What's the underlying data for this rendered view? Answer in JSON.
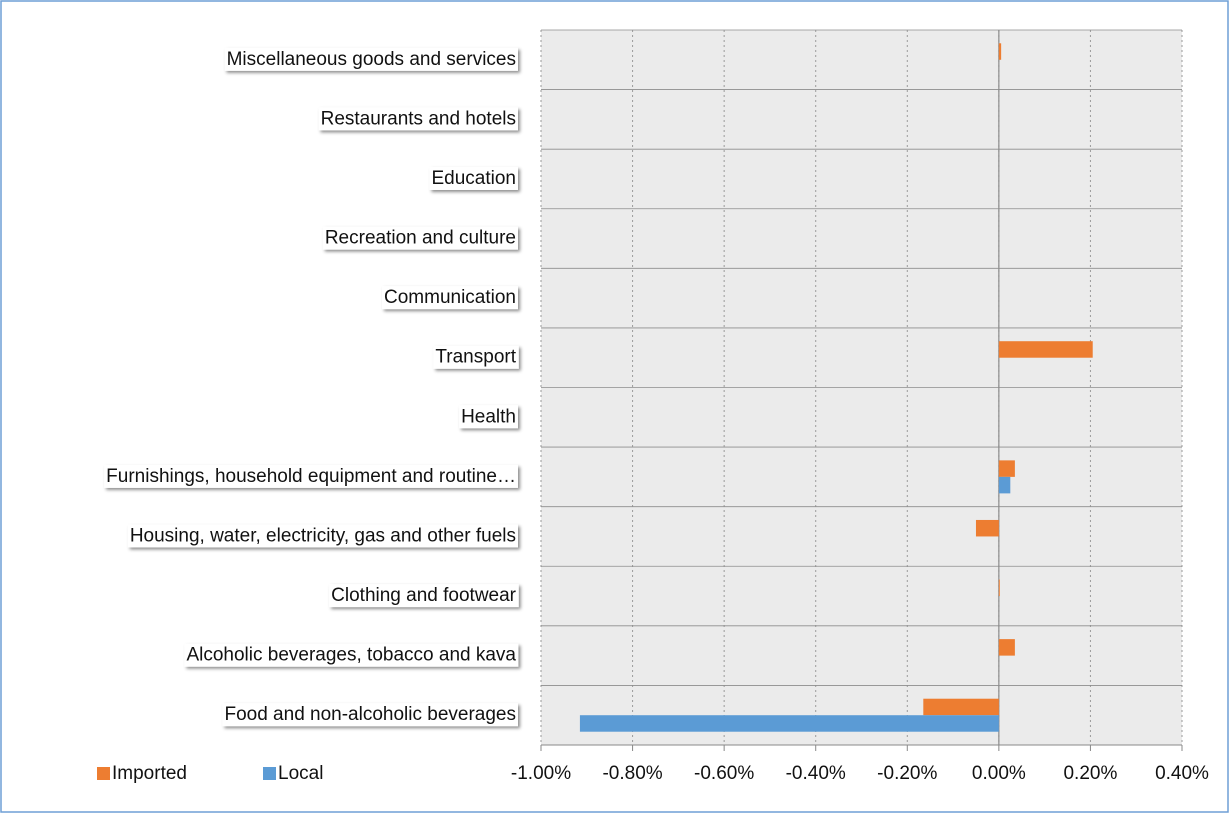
{
  "chart_data": {
    "type": "bar",
    "orientation": "horizontal",
    "categories": [
      "Food and non-alcoholic beverages",
      "Alcoholic beverages, tobacco and kava",
      "Clothing and footwear",
      "Housing, water, electricity, gas and other fuels",
      "Furnishings, household equipment and routine…",
      "Health",
      "Transport",
      "Communication",
      "Recreation and culture",
      "Education",
      "Restaurants and hotels",
      "Miscellaneous goods and services"
    ],
    "series": [
      {
        "name": "Imported",
        "color": "#ed7d31",
        "values": [
          -0.165,
          0.035,
          0.002,
          -0.05,
          0.035,
          0,
          0.205,
          0,
          0,
          0,
          0,
          0.005
        ]
      },
      {
        "name": "Local",
        "color": "#5b9bd5",
        "values": [
          -0.915,
          0,
          0,
          0,
          0.025,
          0,
          0,
          0,
          0,
          0,
          0,
          0
        ]
      }
    ],
    "xlim": [
      -1,
      0.4
    ],
    "xticks": [
      {
        "value": -1,
        "label": "-1.00%"
      },
      {
        "value": -0.8,
        "label": "-0.80%"
      },
      {
        "value": -0.6,
        "label": "-0.60%"
      },
      {
        "value": -0.4,
        "label": "-0.40%"
      },
      {
        "value": -0.2,
        "label": "-0.20%"
      },
      {
        "value": 0,
        "label": "0.00%"
      },
      {
        "value": 0.2,
        "label": "0.20%"
      },
      {
        "value": 0.4,
        "label": "0.40%"
      }
    ],
    "grid": true,
    "legend": "bottom-left"
  }
}
